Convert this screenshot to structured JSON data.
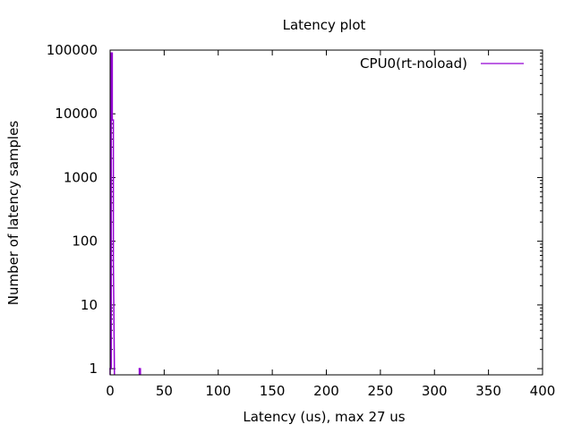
{
  "chart_data": {
    "type": "line",
    "title": "Latency plot",
    "xlabel": "Latency (us), max 27 us",
    "ylabel": "Number of latency samples",
    "xlim": [
      0,
      400
    ],
    "ylim": [
      0.8,
      100000
    ],
    "yscale": "log",
    "grid": false,
    "legend_position": "top-right",
    "x_ticks": [
      0,
      50,
      100,
      150,
      200,
      250,
      300,
      350,
      400
    ],
    "y_ticks": [
      1,
      10,
      100,
      1000,
      10000,
      100000
    ],
    "series": [
      {
        "name": "CPU0(rt-noload)",
        "color": "#9400d3",
        "x": [
          0,
          1,
          2,
          3,
          27
        ],
        "y": [
          1,
          90000,
          8000,
          50,
          1
        ]
      }
    ]
  }
}
